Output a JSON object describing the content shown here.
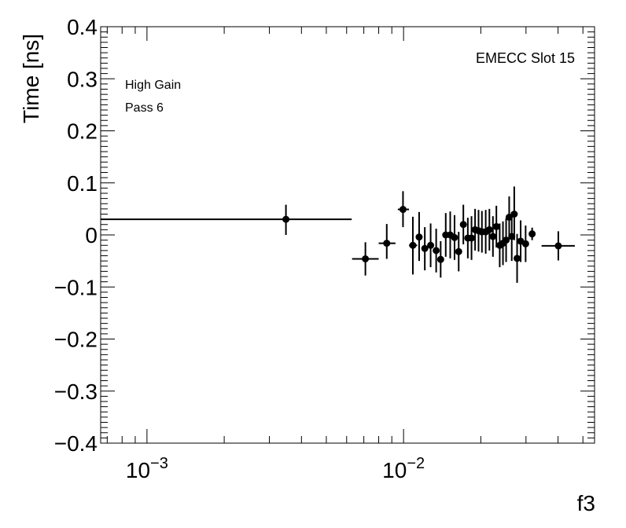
{
  "chart_data": {
    "type": "scatter",
    "title": "",
    "xlabel": "f3",
    "ylabel": "Time [ns]",
    "xscale": "log",
    "xlim": [
      0.00066,
      0.0555
    ],
    "ylim": [
      -0.4,
      0.4
    ],
    "grid": false,
    "legend": "none",
    "annotations": {
      "top_left_line1": "High Gain",
      "top_left_line2": "Pass 6",
      "top_right": "EMECC Slot 15"
    },
    "y_ticks": [
      {
        "value": -0.4,
        "label": "−0.4"
      },
      {
        "value": -0.3,
        "label": "−0.3"
      },
      {
        "value": -0.2,
        "label": "−0.2"
      },
      {
        "value": -0.1,
        "label": "−0.1"
      },
      {
        "value": 0.0,
        "label": "0"
      },
      {
        "value": 0.1,
        "label": "0.1"
      },
      {
        "value": 0.2,
        "label": "0.2"
      },
      {
        "value": 0.3,
        "label": "0.3"
      },
      {
        "value": 0.4,
        "label": "0.4"
      }
    ],
    "x_ticks": [
      {
        "value": 0.001,
        "base": "10",
        "exp": "−3"
      },
      {
        "value": 0.01,
        "base": "10",
        "exp": "−2"
      }
    ],
    "points": [
      {
        "x": 0.00348,
        "y": 0.03,
        "xlo": 0.00066,
        "xhi": 0.00628,
        "ylo": 0.0,
        "yhi": 0.058
      },
      {
        "x": 0.0071,
        "y": -0.046,
        "xlo": 0.0063,
        "xhi": 0.008,
        "ylo": -0.078,
        "yhi": -0.014
      },
      {
        "x": 0.0086,
        "y": -0.016,
        "xlo": 0.008,
        "xhi": 0.0093,
        "ylo": -0.046,
        "yhi": 0.021
      },
      {
        "x": 0.00995,
        "y": 0.049,
        "xlo": 0.0095,
        "xhi": 0.0105,
        "ylo": 0.015,
        "yhi": 0.084
      },
      {
        "x": 0.01087,
        "y": -0.02,
        "xlo": 0.0105,
        "xhi": 0.0113,
        "ylo": -0.076,
        "yhi": 0.035
      },
      {
        "x": 0.0115,
        "y": -0.004,
        "xlo": 0.0112,
        "xhi": 0.0118,
        "ylo": -0.05,
        "yhi": 0.044
      },
      {
        "x": 0.0121,
        "y": -0.026,
        "xlo": 0.0118,
        "xhi": 0.0124,
        "ylo": -0.068,
        "yhi": 0.015
      },
      {
        "x": 0.01275,
        "y": -0.02,
        "xlo": 0.0124,
        "xhi": 0.0131,
        "ylo": -0.062,
        "yhi": 0.022
      },
      {
        "x": 0.0134,
        "y": -0.03,
        "xlo": 0.0131,
        "xhi": 0.0137,
        "ylo": -0.072,
        "yhi": 0.012
      },
      {
        "x": 0.01395,
        "y": -0.047,
        "xlo": 0.0137,
        "xhi": 0.0142,
        "ylo": -0.082,
        "yhi": -0.012
      },
      {
        "x": 0.0146,
        "y": 0.0,
        "xlo": 0.0143,
        "xhi": 0.0149,
        "ylo": -0.042,
        "yhi": 0.042
      },
      {
        "x": 0.0152,
        "y": 0.0,
        "xlo": 0.0149,
        "xhi": 0.0155,
        "ylo": -0.045,
        "yhi": 0.045
      },
      {
        "x": 0.0158,
        "y": -0.005,
        "xlo": 0.0155,
        "xhi": 0.0161,
        "ylo": -0.048,
        "yhi": 0.038
      },
      {
        "x": 0.0164,
        "y": -0.032,
        "xlo": 0.0161,
        "xhi": 0.0167,
        "ylo": -0.07,
        "yhi": 0.006
      },
      {
        "x": 0.0171,
        "y": 0.02,
        "xlo": 0.0168,
        "xhi": 0.0174,
        "ylo": -0.018,
        "yhi": 0.058
      },
      {
        "x": 0.0178,
        "y": -0.006,
        "xlo": 0.0175,
        "xhi": 0.0181,
        "ylo": -0.045,
        "yhi": 0.033
      },
      {
        "x": 0.0184,
        "y": -0.006,
        "xlo": 0.0181,
        "xhi": 0.0187,
        "ylo": -0.048,
        "yhi": 0.036
      },
      {
        "x": 0.019,
        "y": 0.01,
        "xlo": 0.0187,
        "xhi": 0.0193,
        "ylo": -0.03,
        "yhi": 0.05
      },
      {
        "x": 0.0196,
        "y": 0.008,
        "xlo": 0.0193,
        "xhi": 0.0199,
        "ylo": -0.032,
        "yhi": 0.048
      },
      {
        "x": 0.0202,
        "y": 0.006,
        "xlo": 0.0199,
        "xhi": 0.0205,
        "ylo": -0.034,
        "yhi": 0.046
      },
      {
        "x": 0.0209,
        "y": 0.006,
        "xlo": 0.0206,
        "xhi": 0.0212,
        "ylo": -0.036,
        "yhi": 0.048
      },
      {
        "x": 0.0216,
        "y": 0.01,
        "xlo": 0.0213,
        "xhi": 0.0219,
        "ylo": -0.03,
        "yhi": 0.05
      },
      {
        "x": 0.0223,
        "y": -0.003,
        "xlo": 0.022,
        "xhi": 0.0226,
        "ylo": -0.042,
        "yhi": 0.036
      },
      {
        "x": 0.023,
        "y": 0.016,
        "xlo": 0.0227,
        "xhi": 0.0233,
        "ylo": -0.024,
        "yhi": 0.056
      },
      {
        "x": 0.0237,
        "y": -0.02,
        "xlo": 0.0234,
        "xhi": 0.024,
        "ylo": -0.062,
        "yhi": 0.022
      },
      {
        "x": 0.0244,
        "y": -0.016,
        "xlo": 0.0241,
        "xhi": 0.0247,
        "ylo": -0.058,
        "yhi": 0.026
      },
      {
        "x": 0.0251,
        "y": -0.01,
        "xlo": 0.0248,
        "xhi": 0.0254,
        "ylo": -0.052,
        "yhi": 0.032
      },
      {
        "x": 0.0258,
        "y": 0.034,
        "xlo": 0.0255,
        "xhi": 0.0261,
        "ylo": -0.006,
        "yhi": 0.074
      },
      {
        "x": 0.0264,
        "y": -0.003,
        "xlo": 0.0261,
        "xhi": 0.0267,
        "ylo": -0.05,
        "yhi": 0.044
      },
      {
        "x": 0.027,
        "y": 0.04,
        "xlo": 0.0267,
        "xhi": 0.0273,
        "ylo": -0.01,
        "yhi": 0.093
      },
      {
        "x": 0.0277,
        "y": -0.045,
        "xlo": 0.0274,
        "xhi": 0.028,
        "ylo": -0.092,
        "yhi": 0.002
      },
      {
        "x": 0.0286,
        "y": -0.012,
        "xlo": 0.0282,
        "xhi": 0.029,
        "ylo": -0.052,
        "yhi": 0.028
      },
      {
        "x": 0.0299,
        "y": -0.017,
        "xlo": 0.0294,
        "xhi": 0.0304,
        "ylo": -0.052,
        "yhi": 0.018
      },
      {
        "x": 0.0317,
        "y": 0.002,
        "xlo": 0.0312,
        "xhi": 0.0322,
        "ylo": -0.01,
        "yhi": 0.014
      },
      {
        "x": 0.0401,
        "y": -0.021,
        "xlo": 0.0345,
        "xhi": 0.0465,
        "ylo": -0.049,
        "yhi": 0.007
      }
    ]
  }
}
